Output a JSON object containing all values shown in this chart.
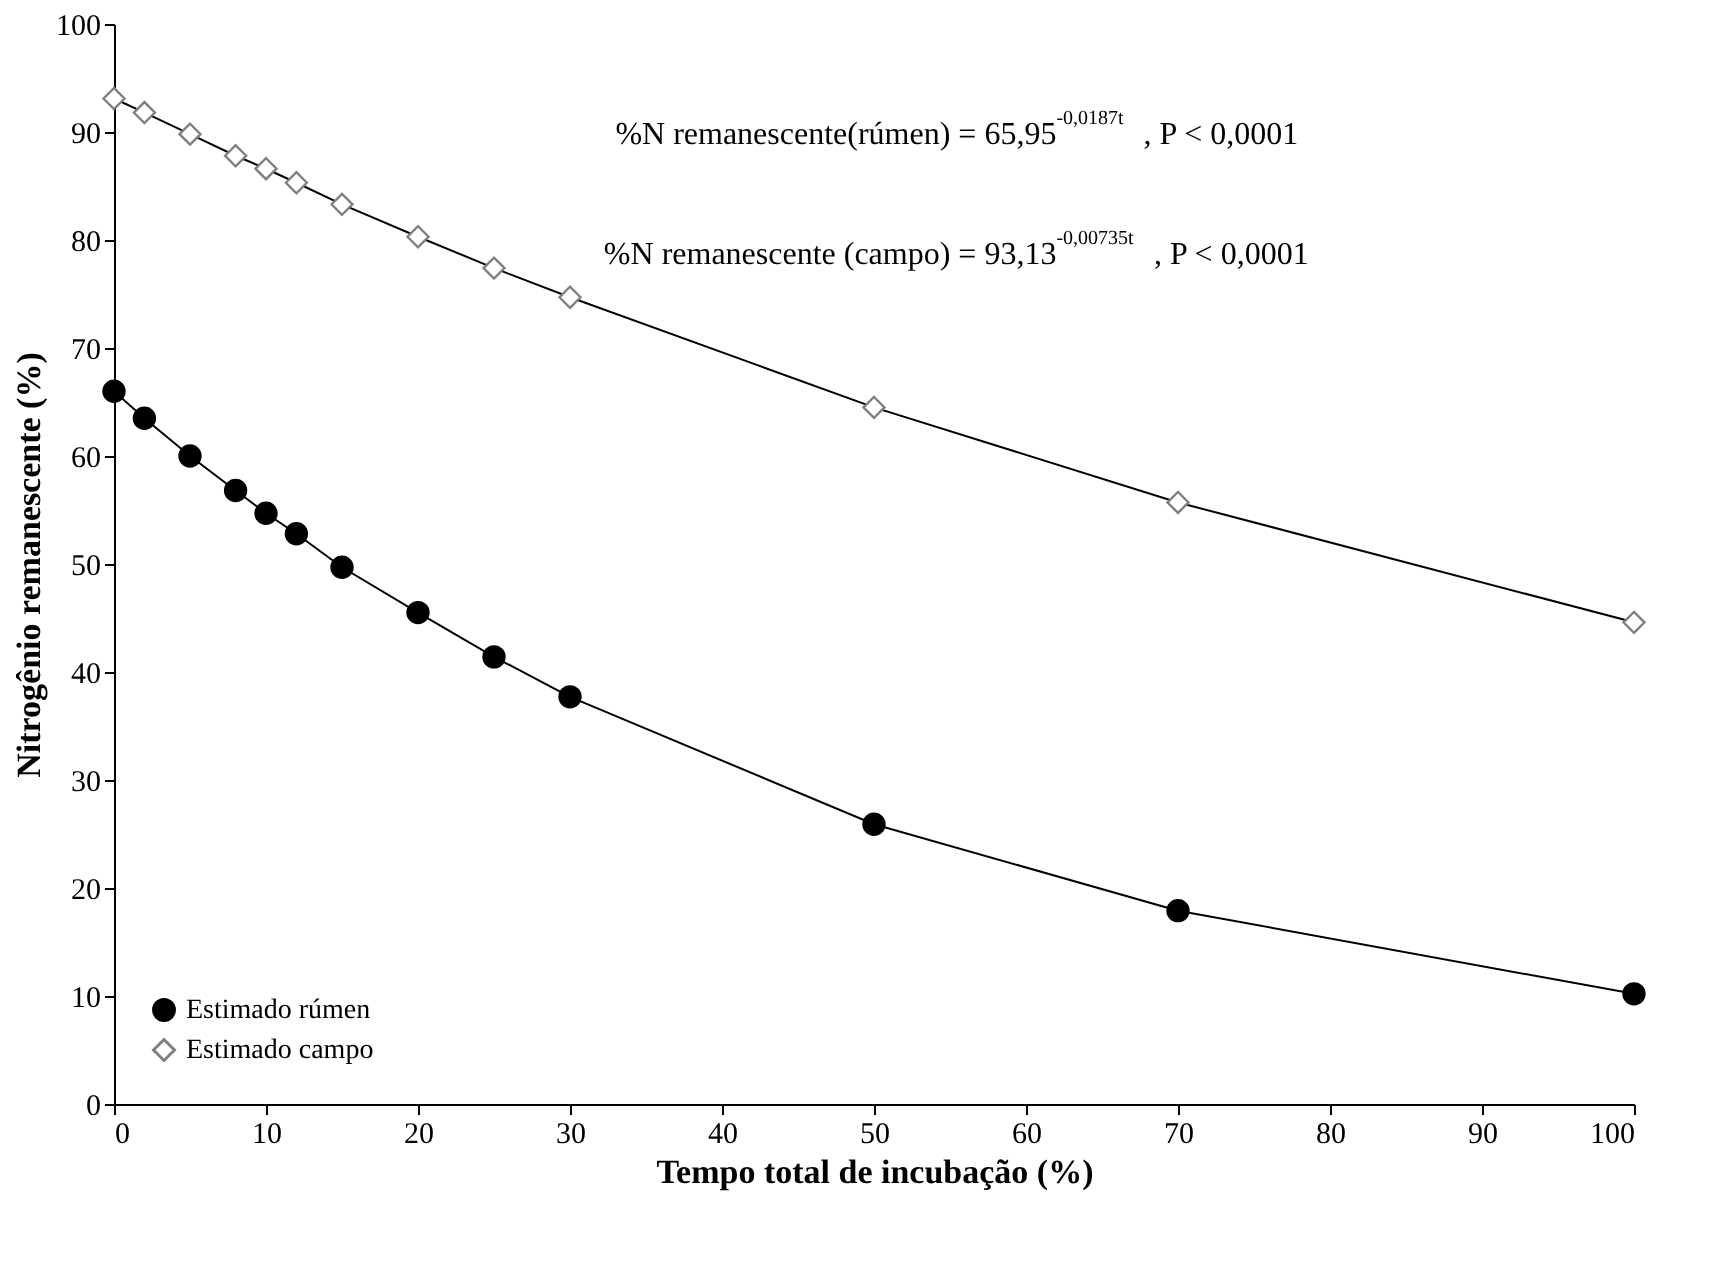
{
  "chart_data": {
    "type": "line",
    "xlabel": "Tempo total de incubação (%)",
    "ylabel": "Nitrogênio  remanescente (%)",
    "x": [
      0,
      2,
      5,
      8,
      10,
      12,
      15,
      20,
      25,
      30,
      50,
      70,
      100
    ],
    "series": [
      {
        "name": "Estimado rúmen",
        "color": "#000000",
        "marker": "circle",
        "values": [
          66.0,
          63.5,
          60.0,
          56.8,
          54.7,
          52.8,
          49.7,
          45.5,
          41.4,
          37.7,
          25.9,
          17.9,
          10.2
        ]
      },
      {
        "name": "Estimado campo",
        "color": "#808080",
        "marker": "diamond",
        "values": [
          93.1,
          91.8,
          89.8,
          87.8,
          86.6,
          85.3,
          83.3,
          80.3,
          77.4,
          74.7,
          64.5,
          55.7,
          44.6
        ]
      }
    ],
    "annotations": [
      "%N remanescente(rúmen) = 65,95$^{-0,0187t}$,  P < 0,0001",
      "%N remanescente (campo) = 93,13$^{-0,00735t}$, P < 0,0001"
    ],
    "xlim": [
      0,
      100
    ],
    "xticks": [
      0,
      10,
      20,
      30,
      40,
      50,
      60,
      70,
      80,
      90,
      100
    ],
    "ylim": [
      0,
      100
    ],
    "yticks": [
      0,
      10,
      20,
      30,
      40,
      50,
      60,
      70,
      80,
      90,
      100
    ],
    "grid": false,
    "legend": "bottom left",
    "line_style": "solid"
  }
}
